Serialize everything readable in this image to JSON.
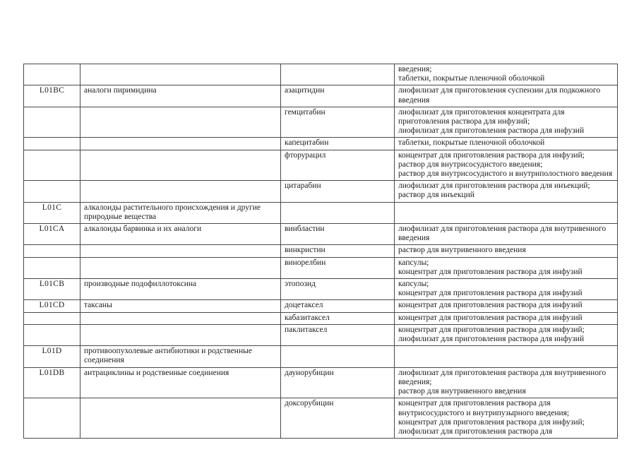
{
  "document": {
    "kind": "drug-classification-table",
    "language": "ru",
    "text_color": "#1c1c1c",
    "border_color": "#4a4a4a",
    "background_color": "#ffffff"
  },
  "table": {
    "columns": [
      "code",
      "group",
      "drug",
      "forms"
    ],
    "rows": [
      {
        "code": "",
        "group": "",
        "drug": "",
        "forms": [
          "введения;",
          "таблетки, покрытые пленочной оболочкой"
        ]
      },
      {
        "code": "L01BC",
        "group": "аналоги пиримидина",
        "drug": "азацитидин",
        "forms": [
          "лиофилизат для приготовления суспензии для подкожного введения"
        ]
      },
      {
        "code": "",
        "group": "",
        "drug": "гемцитабин",
        "forms": [
          "лиофилизат для приготовления концентрата для приготовления раствора для инфузий;",
          "лиофилизат для приготовления раствора для инфузий"
        ]
      },
      {
        "code": "",
        "group": "",
        "drug": "капецитабин",
        "forms": [
          "таблетки, покрытые пленочной оболочкой"
        ]
      },
      {
        "code": "",
        "group": "",
        "drug": "фторурацил",
        "forms": [
          "концентрат для приготовления раствора для инфузий;",
          "раствор для внутрисосудистого введения;",
          "раствор для внутрисосудистого и внутриполостного введения"
        ]
      },
      {
        "code": "",
        "group": "",
        "drug": "цитарабин",
        "forms": [
          "лиофилизат для приготовления раствора для инъекций;",
          "раствор для инъекций"
        ]
      },
      {
        "code": "L01C",
        "group": "алкалоиды растительного происхождения и другие природные вещества",
        "drug": "",
        "forms": []
      },
      {
        "code": "L01CA",
        "group": "алкалоиды барвинка и их аналоги",
        "drug": "винбластин",
        "forms": [
          "лиофилизат для приготовления раствора для внутривенного введения"
        ]
      },
      {
        "code": "",
        "group": "",
        "drug": "винкристин",
        "forms": [
          "раствор для внутривенного введения"
        ]
      },
      {
        "code": "",
        "group": "",
        "drug": "винорелбин",
        "forms": [
          "капсулы;",
          "концентрат для приготовления раствора для инфузий"
        ]
      },
      {
        "code": "L01CB",
        "group": "производные подофиллотоксина",
        "drug": "этопозид",
        "forms": [
          "капсулы;",
          "концентрат для приготовления раствора для инфузий"
        ]
      },
      {
        "code": "L01CD",
        "group": "таксаны",
        "drug": "доцетаксел",
        "forms": [
          "концентрат для приготовления раствора для инфузий"
        ]
      },
      {
        "code": "",
        "group": "",
        "drug": "кабазитаксел",
        "forms": [
          "концентрат для приготовления раствора для инфузий"
        ]
      },
      {
        "code": "",
        "group": "",
        "drug": "паклитаксел",
        "forms": [
          "концентрат для приготовления раствора для инфузий;",
          "лиофилизат для приготовления раствора для инфузий"
        ]
      },
      {
        "code": "L01D",
        "group": "противоопухолевые антибиотики и родственные соединения",
        "drug": "",
        "forms": []
      },
      {
        "code": "L01DB",
        "group": "антрациклины и родственные соединения",
        "drug": "даунорубицин",
        "forms": [
          "лиофилизат для приготовления раствора для внутривенного введения;",
          "раствор для внутривенного введения"
        ]
      },
      {
        "code": "",
        "group": "",
        "drug": "доксорубицин",
        "forms": [
          "концентрат для приготовления раствора для внутрисосудистого и внутрипузырного введения;",
          "концентрат для приготовления раствора для инфузий;",
          "лиофилизат для приготовления раствора для"
        ]
      }
    ]
  }
}
